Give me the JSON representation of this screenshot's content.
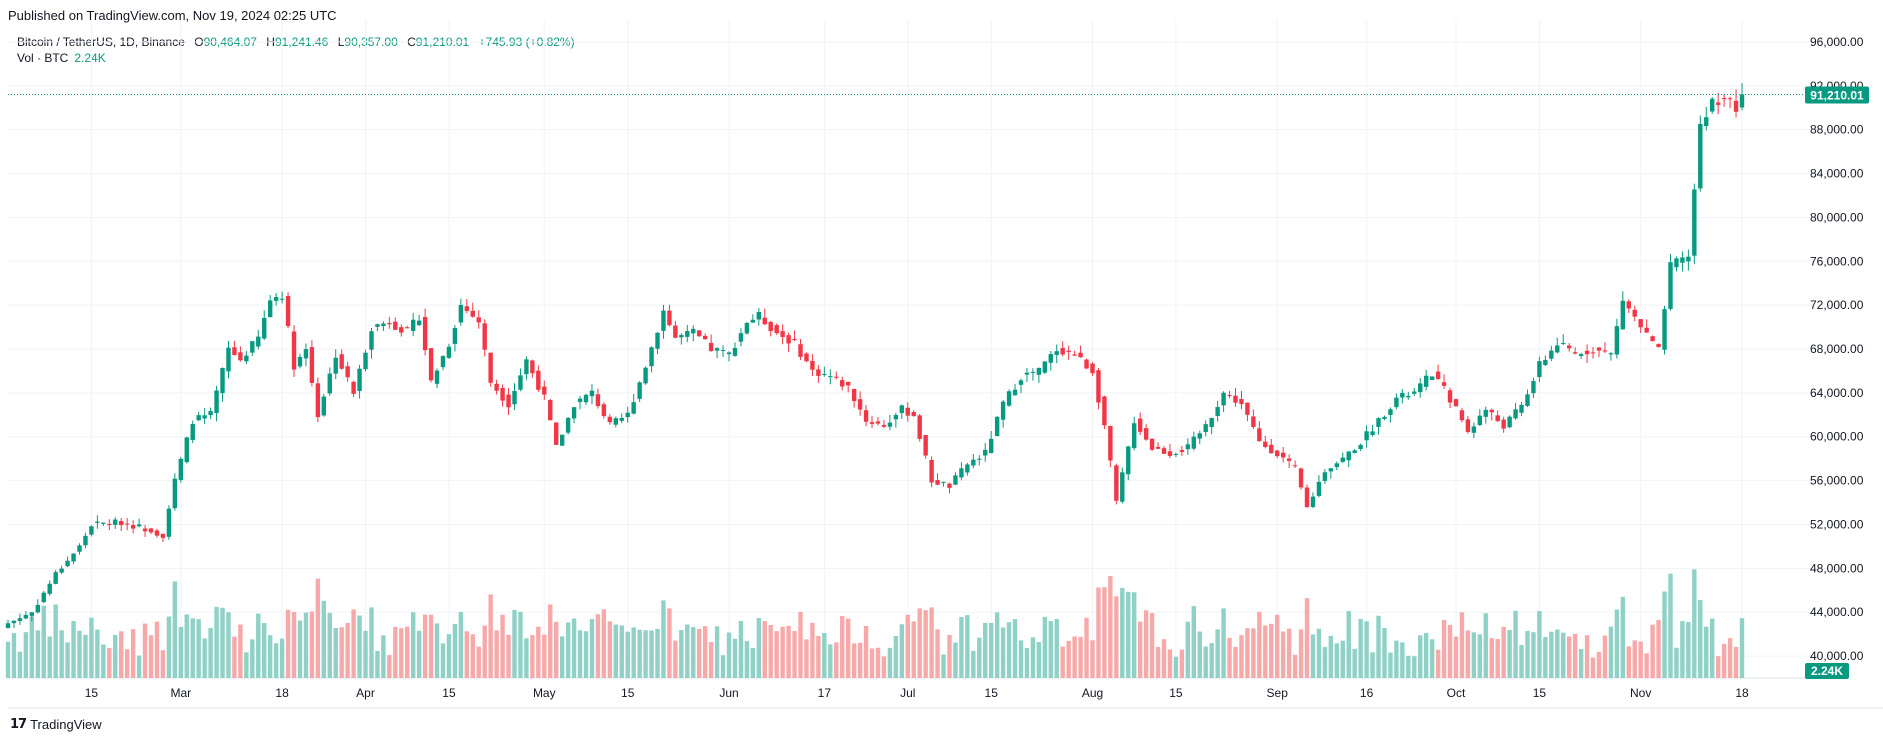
{
  "header": {
    "published": "Published on TradingView.com, Nov 19, 2024 02:25 UTC"
  },
  "legend": {
    "symbol": "Bitcoin / TetherUS, 1D, Binance",
    "o_label": "O",
    "o_value": "90,464.07",
    "h_label": "H",
    "h_value": "91,241.46",
    "l_label": "L",
    "l_value": "90,357.00",
    "c_label": "C",
    "c_value": "91,210.01",
    "change": "+745.93 (+0.82%)",
    "volume_label": "Vol · BTC",
    "volume_value": "2.24K"
  },
  "footer": {
    "brand": "TradingView",
    "logo_text": "𝟭𝟳"
  },
  "colors": {
    "up": "#089981",
    "down": "#f23645",
    "up_volume": "#8fd1c6",
    "down_volume": "#f7a9a9",
    "grid": "#f0f3fa",
    "last_price_label": "#089981"
  },
  "chart_data": {
    "type": "candlestick",
    "symbol": "BTCUSDT",
    "interval": "1D",
    "price_axis": {
      "ylim": [
        38000,
        98000
      ],
      "ticks": [
        96000,
        92000,
        88000,
        84000,
        80000,
        76000,
        72000,
        68000,
        64000,
        60000,
        56000,
        52000,
        48000,
        44000,
        40000
      ],
      "tick_labels": [
        "96,000.00",
        "92,000.00",
        "88,000.00",
        "84,000.00",
        "80,000.00",
        "76,000.00",
        "72,000.00",
        "68,000.00",
        "64,000.00",
        "60,000.00",
        "56,000.00",
        "52,000.00",
        "48,000.00",
        "44,000.00",
        "40,000.00"
      ]
    },
    "time_axis": {
      "start": "2024-02-01",
      "end": "2024-11-18",
      "tick_labels": [
        {
          "date": "2024-02-15",
          "label": "15"
        },
        {
          "date": "2024-03-01",
          "label": "Mar"
        },
        {
          "date": "2024-03-18",
          "label": "18"
        },
        {
          "date": "2024-04-01",
          "label": "Apr"
        },
        {
          "date": "2024-04-15",
          "label": "15"
        },
        {
          "date": "2024-05-01",
          "label": "May"
        },
        {
          "date": "2024-05-15",
          "label": "15"
        },
        {
          "date": "2024-06-01",
          "label": "Jun"
        },
        {
          "date": "2024-06-17",
          "label": "17"
        },
        {
          "date": "2024-07-01",
          "label": "Jul"
        },
        {
          "date": "2024-07-15",
          "label": "15"
        },
        {
          "date": "2024-08-01",
          "label": "Aug"
        },
        {
          "date": "2024-08-15",
          "label": "15"
        },
        {
          "date": "2024-09-01",
          "label": "Sep"
        },
        {
          "date": "2024-09-16",
          "label": "16"
        },
        {
          "date": "2024-10-01",
          "label": "Oct"
        },
        {
          "date": "2024-10-15",
          "label": "15"
        },
        {
          "date": "2024-11-01",
          "label": "Nov"
        },
        {
          "date": "2024-11-18",
          "label": "18"
        }
      ]
    },
    "last_price": {
      "value": 91210.01,
      "label": "91,210.01"
    },
    "last_volume": {
      "label": "2.24K"
    },
    "close_path": [
      {
        "date": "2024-02-01",
        "close": 43000
      },
      {
        "date": "2024-02-05",
        "close": 44000
      },
      {
        "date": "2024-02-09",
        "close": 47500
      },
      {
        "date": "2024-02-13",
        "close": 50000
      },
      {
        "date": "2024-02-15",
        "close": 52000
      },
      {
        "date": "2024-02-20",
        "close": 52200
      },
      {
        "date": "2024-02-25",
        "close": 51500
      },
      {
        "date": "2024-02-27",
        "close": 51000
      },
      {
        "date": "2024-02-29",
        "close": 56000
      },
      {
        "date": "2024-03-03",
        "close": 61500
      },
      {
        "date": "2024-03-06",
        "close": 62000
      },
      {
        "date": "2024-03-09",
        "close": 68000
      },
      {
        "date": "2024-03-11",
        "close": 67000
      },
      {
        "date": "2024-03-14",
        "close": 69000
      },
      {
        "date": "2024-03-16",
        "close": 72500
      },
      {
        "date": "2024-03-18",
        "close": 73000
      },
      {
        "date": "2024-03-20",
        "close": 66500
      },
      {
        "date": "2024-03-22",
        "close": 68000
      },
      {
        "date": "2024-03-24",
        "close": 62000
      },
      {
        "date": "2024-03-27",
        "close": 67500
      },
      {
        "date": "2024-03-30",
        "close": 64000
      },
      {
        "date": "2024-04-02",
        "close": 70000
      },
      {
        "date": "2024-04-05",
        "close": 70500
      },
      {
        "date": "2024-04-08",
        "close": 69500
      },
      {
        "date": "2024-04-10",
        "close": 71000
      },
      {
        "date": "2024-04-12",
        "close": 65000
      },
      {
        "date": "2024-04-15",
        "close": 68500
      },
      {
        "date": "2024-04-17",
        "close": 72000
      },
      {
        "date": "2024-04-20",
        "close": 70500
      },
      {
        "date": "2024-04-22",
        "close": 65000
      },
      {
        "date": "2024-04-25",
        "close": 63000
      },
      {
        "date": "2024-04-28",
        "close": 67000
      },
      {
        "date": "2024-05-01",
        "close": 63500
      },
      {
        "date": "2024-05-03",
        "close": 59000
      },
      {
        "date": "2024-05-06",
        "close": 63000
      },
      {
        "date": "2024-05-09",
        "close": 64000
      },
      {
        "date": "2024-05-12",
        "close": 61000
      },
      {
        "date": "2024-05-15",
        "close": 62000
      },
      {
        "date": "2024-05-18",
        "close": 66500
      },
      {
        "date": "2024-05-21",
        "close": 71500
      },
      {
        "date": "2024-05-23",
        "close": 69000
      },
      {
        "date": "2024-05-26",
        "close": 69500
      },
      {
        "date": "2024-05-29",
        "close": 68000
      },
      {
        "date": "2024-06-01",
        "close": 67500
      },
      {
        "date": "2024-06-04",
        "close": 70500
      },
      {
        "date": "2024-06-06",
        "close": 71000
      },
      {
        "date": "2024-06-09",
        "close": 69500
      },
      {
        "date": "2024-06-12",
        "close": 68500
      },
      {
        "date": "2024-06-15",
        "close": 66000
      },
      {
        "date": "2024-06-18",
        "close": 65500
      },
      {
        "date": "2024-06-21",
        "close": 64500
      },
      {
        "date": "2024-06-24",
        "close": 61500
      },
      {
        "date": "2024-06-27",
        "close": 61000
      },
      {
        "date": "2024-06-30",
        "close": 62500
      },
      {
        "date": "2024-07-02",
        "close": 62000
      },
      {
        "date": "2024-07-05",
        "close": 56000
      },
      {
        "date": "2024-07-08",
        "close": 55500
      },
      {
        "date": "2024-07-11",
        "close": 57500
      },
      {
        "date": "2024-07-14",
        "close": 58500
      },
      {
        "date": "2024-07-17",
        "close": 63000
      },
      {
        "date": "2024-07-20",
        "close": 65500
      },
      {
        "date": "2024-07-23",
        "close": 66000
      },
      {
        "date": "2024-07-26",
        "close": 68000
      },
      {
        "date": "2024-07-29",
        "close": 67500
      },
      {
        "date": "2024-08-01",
        "close": 66000
      },
      {
        "date": "2024-08-03",
        "close": 61000
      },
      {
        "date": "2024-08-05",
        "close": 54000
      },
      {
        "date": "2024-08-08",
        "close": 61500
      },
      {
        "date": "2024-08-11",
        "close": 59000
      },
      {
        "date": "2024-08-14",
        "close": 58500
      },
      {
        "date": "2024-08-17",
        "close": 59000
      },
      {
        "date": "2024-08-20",
        "close": 61000
      },
      {
        "date": "2024-08-23",
        "close": 64000
      },
      {
        "date": "2024-08-26",
        "close": 63000
      },
      {
        "date": "2024-08-29",
        "close": 59500
      },
      {
        "date": "2024-09-01",
        "close": 58500
      },
      {
        "date": "2024-09-04",
        "close": 57000
      },
      {
        "date": "2024-09-06",
        "close": 53500
      },
      {
        "date": "2024-09-09",
        "close": 57000
      },
      {
        "date": "2024-09-12",
        "close": 58000
      },
      {
        "date": "2024-09-15",
        "close": 59500
      },
      {
        "date": "2024-09-18",
        "close": 61500
      },
      {
        "date": "2024-09-21",
        "close": 63500
      },
      {
        "date": "2024-09-24",
        "close": 64000
      },
      {
        "date": "2024-09-27",
        "close": 65800
      },
      {
        "date": "2024-09-30",
        "close": 63500
      },
      {
        "date": "2024-10-03",
        "close": 60500
      },
      {
        "date": "2024-10-06",
        "close": 62500
      },
      {
        "date": "2024-10-09",
        "close": 61000
      },
      {
        "date": "2024-10-12",
        "close": 62800
      },
      {
        "date": "2024-10-15",
        "close": 66500
      },
      {
        "date": "2024-10-18",
        "close": 68500
      },
      {
        "date": "2024-10-21",
        "close": 67500
      },
      {
        "date": "2024-10-24",
        "close": 68000
      },
      {
        "date": "2024-10-27",
        "close": 67500
      },
      {
        "date": "2024-10-29",
        "close": 72500
      },
      {
        "date": "2024-11-01",
        "close": 70000
      },
      {
        "date": "2024-11-04",
        "close": 67800
      },
      {
        "date": "2024-11-06",
        "close": 75500
      },
      {
        "date": "2024-11-09",
        "close": 76500
      },
      {
        "date": "2024-11-11",
        "close": 88500
      },
      {
        "date": "2024-11-13",
        "close": 90500
      },
      {
        "date": "2024-11-15",
        "close": 91000
      },
      {
        "date": "2024-11-16",
        "close": 90500
      },
      {
        "date": "2024-11-17",
        "close": 89800
      },
      {
        "date": "2024-11-18",
        "close": 91210
      }
    ]
  }
}
